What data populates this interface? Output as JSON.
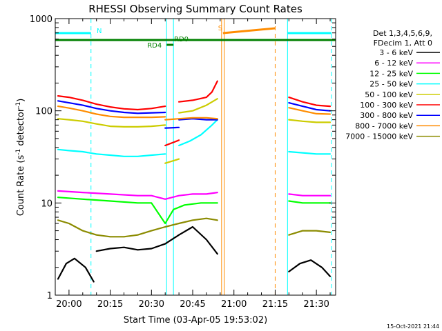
{
  "chart_data": {
    "type": "line",
    "title": "RHESSI Observing Summary Count Rates",
    "xlabel": "Start Time (03-Apr-05 19:53:02)",
    "ylabel_main": "Count Rate (s",
    "ylabel_sup1": "-1",
    "ylabel_mid": " detector",
    "ylabel_sup2": "-1",
    "ylabel_end": ")",
    "yscale": "log",
    "xlim_minutes": [
      -5,
      97
    ],
    "ylim": [
      1,
      1000
    ],
    "x_ticks": [
      {
        "label": "20:00",
        "min": 0
      },
      {
        "label": "20:15",
        "min": 15
      },
      {
        "label": "20:30",
        "min": 30
      },
      {
        "label": "20:45",
        "min": 45
      },
      {
        "label": "21:00",
        "min": 60
      },
      {
        "label": "21:15",
        "min": 75
      },
      {
        "label": "21:30",
        "min": 90
      }
    ],
    "y_ticks": [
      {
        "label": "1",
        "value": 1
      },
      {
        "label": "10",
        "value": 10
      },
      {
        "label": "100",
        "value": 100
      },
      {
        "label": "1000",
        "value": 1000
      }
    ],
    "legend_header": [
      "Det 1,3,4,5,6,9,",
      "FDecim 1, Att 0"
    ],
    "series": [
      {
        "name": "3 - 6 keV",
        "color": "#000000",
        "segments": [
          {
            "x": [
              -4,
              -1,
              2,
              6,
              9
            ],
            "y": [
              1.5,
              2.2,
              2.5,
              2.0,
              1.4
            ]
          },
          {
            "x": [
              10,
              15,
              20,
              25,
              30,
              35,
              40,
              45,
              50,
              54
            ],
            "y": [
              3.0,
              3.2,
              3.3,
              3.1,
              3.2,
              3.6,
              4.5,
              5.5,
              4.0,
              2.8
            ]
          },
          {
            "x": [
              80,
              84,
              88,
              92,
              95
            ],
            "y": [
              1.8,
              2.2,
              2.4,
              2.0,
              1.6
            ]
          }
        ]
      },
      {
        "name": "6 - 12 keV",
        "color": "#ff00ff",
        "segments": [
          {
            "x": [
              -4,
              5,
              15,
              25,
              30,
              35,
              40,
              45,
              50,
              54
            ],
            "y": [
              13.5,
              13,
              12.5,
              12,
              12,
              11,
              12,
              12.5,
              12.5,
              13
            ]
          },
          {
            "x": [
              80,
              85,
              90,
              95
            ],
            "y": [
              12.5,
              12,
              12,
              12
            ]
          }
        ]
      },
      {
        "name": "12 - 25 keV",
        "color": "#00ff00",
        "segments": [
          {
            "x": [
              -4,
              5,
              15,
              25,
              30,
              35,
              38,
              42,
              48,
              54
            ],
            "y": [
              11.5,
              11,
              10.5,
              10,
              10,
              6,
              8.5,
              9.5,
              10,
              10
            ]
          },
          {
            "x": [
              80,
              85,
              90,
              95
            ],
            "y": [
              10.5,
              10,
              10,
              10
            ]
          }
        ]
      },
      {
        "name": "25 - 50 keV",
        "color": "#00ffff",
        "segments": [
          {
            "x": [
              -4,
              0,
              5,
              10,
              15,
              20,
              25,
              30,
              35
            ],
            "y": [
              38,
              37,
              36,
              34,
              33,
              32,
              32,
              33,
              34
            ]
          },
          {
            "x": [
              40,
              44,
              48,
              52,
              54
            ],
            "y": [
              42,
              47,
              55,
              70,
              80
            ]
          },
          {
            "x": [
              80,
              85,
              90,
              95
            ],
            "y": [
              36,
              35,
              34,
              34
            ]
          }
        ]
      },
      {
        "name": "50 - 100 keV",
        "color": "#cccc00",
        "segments": [
          {
            "x": [
              -4,
              0,
              5,
              10,
              15,
              20,
              25,
              30,
              35
            ],
            "y": [
              82,
              80,
              77,
              72,
              68,
              67,
              67,
              68,
              70
            ]
          },
          {
            "x": [
              35,
              40
            ],
            "y": [
              27,
              30
            ]
          },
          {
            "x": [
              40,
              45,
              50,
              54
            ],
            "y": [
              95,
              100,
              115,
              135
            ]
          },
          {
            "x": [
              80,
              85,
              90,
              95
            ],
            "y": [
              80,
              77,
              75,
              75
            ]
          }
        ]
      },
      {
        "name": "100 - 300 keV",
        "color": "#ff0000",
        "segments": [
          {
            "x": [
              -4,
              0,
              5,
              10,
              15,
              20,
              25,
              30,
              35
            ],
            "y": [
              145,
              140,
              130,
              118,
              110,
              105,
              103,
              106,
              112
            ]
          },
          {
            "x": [
              35,
              40
            ],
            "y": [
              42,
              48
            ]
          },
          {
            "x": [
              40,
              45,
              50,
              52,
              54
            ],
            "y": [
              125,
              130,
              140,
              160,
              210
            ]
          },
          {
            "x": [
              80,
              85,
              90,
              95
            ],
            "y": [
              140,
              125,
              115,
              112
            ]
          }
        ]
      },
      {
        "name": "300 - 800 keV",
        "color": "#0000ff",
        "segments": [
          {
            "x": [
              -4,
              0,
              5,
              10,
              15,
              20,
              25,
              30,
              35
            ],
            "y": [
              128,
              122,
              115,
              106,
              100,
              96,
              94,
              95,
              96
            ]
          },
          {
            "x": [
              35,
              40
            ],
            "y": [
              65,
              66
            ]
          },
          {
            "x": [
              40,
              45,
              50,
              54
            ],
            "y": [
              80,
              82,
              80,
              80
            ]
          },
          {
            "x": [
              80,
              85,
              90,
              95
            ],
            "y": [
              122,
              112,
              103,
              100
            ]
          }
        ]
      },
      {
        "name": "800 - 7000 keV",
        "color": "#ff8c00",
        "segments": [
          {
            "x": [
              -4,
              0,
              5,
              10,
              15,
              20,
              25,
              30,
              35
            ],
            "y": [
              112,
              107,
              100,
              92,
              87,
              85,
              85,
              85,
              86
            ]
          },
          {
            "x": [
              35,
              40,
              45,
              50,
              54
            ],
            "y": [
              80,
              82,
              84,
              84,
              82
            ]
          },
          {
            "x": [
              80,
              85,
              90,
              95
            ],
            "y": [
              108,
              100,
              93,
              92
            ]
          }
        ]
      },
      {
        "name": "7000 - 15000 keV",
        "color": "#8b8b00",
        "segments": [
          {
            "x": [
              -4,
              0,
              5,
              10,
              15,
              20,
              25,
              30,
              35,
              40,
              45,
              50,
              54
            ],
            "y": [
              6.5,
              6,
              5,
              4.5,
              4.3,
              4.3,
              4.5,
              5,
              5.5,
              6,
              6.5,
              6.8,
              6.5
            ]
          },
          {
            "x": [
              80,
              85,
              90,
              95
            ],
            "y": [
              4.5,
              5,
              5,
              4.8
            ]
          }
        ]
      }
    ],
    "shading_intervals": [
      {
        "label": "N",
        "color": "#00ffff",
        "start_min": -5,
        "end_min": 8
      },
      {
        "label": "",
        "color": "#00ffff",
        "start_min": 79.5,
        "end_min": 95.5
      },
      {
        "label": "S",
        "color": "#ff8c00",
        "start_min": 56,
        "end_min": 75
      }
    ],
    "vertical_lines": [
      {
        "color": "#00ffff",
        "min": -5,
        "dashed": false
      },
      {
        "color": "#00ffff",
        "min": 8,
        "dashed": true
      },
      {
        "color": "#00ffff",
        "min": 35.5,
        "dashed": false
      },
      {
        "color": "#00ffff",
        "min": 38,
        "dashed": false
      },
      {
        "color": "#00ffff",
        "min": 79.5,
        "dashed": false
      },
      {
        "color": "#00ffff",
        "min": 95.5,
        "dashed": true
      },
      {
        "color": "#ff8c00",
        "min": 55.5,
        "dashed": false
      },
      {
        "color": "#ff8c00",
        "min": 56.5,
        "dashed": false
      },
      {
        "color": "#ff8c00",
        "min": 75,
        "dashed": true
      }
    ],
    "flags": [
      {
        "label": "RD0",
        "color": "#008000",
        "start_min": -5,
        "end_min": 97
      },
      {
        "label": "RD4",
        "color": "#008000",
        "start_min": 35.5,
        "end_min": 38
      }
    ],
    "timestamp": "15-Oct-2021 21:44"
  }
}
